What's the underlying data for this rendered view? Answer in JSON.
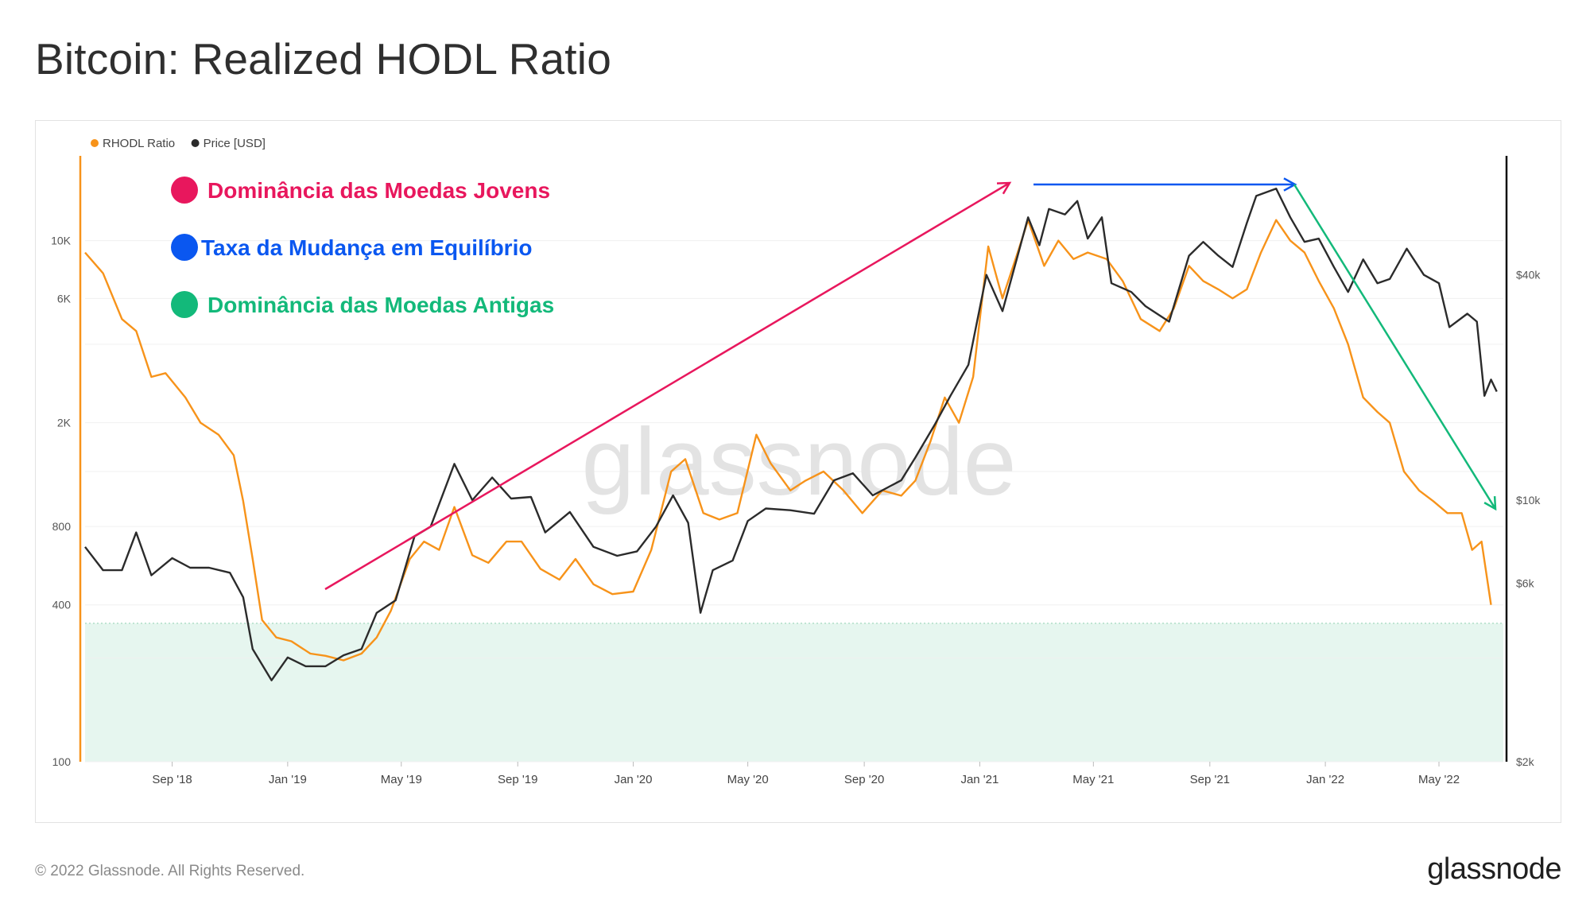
{
  "page": {
    "title": "Bitcoin: Realized HODL Ratio",
    "copyright": "© 2022 Glassnode. All Rights Reserved.",
    "logo_text": "glassnode",
    "watermark": "glassnode"
  },
  "colors": {
    "rhodl": "#f7931a",
    "price": "#2b2b2b",
    "young": "#e8175d",
    "equilibrium": "#0a57f0",
    "old": "#13b97a",
    "zone_fill": "#e6f6ef"
  },
  "annotations": [
    {
      "label": "Dominância das Moedas Jovens",
      "color": "#e8175d"
    },
    {
      "label": "Taxa da Mudança em Equilíbrio",
      "color": "#0a57f0"
    },
    {
      "label": "Dominância das Moedas Antigas",
      "color": "#13b97a"
    }
  ],
  "chart_data": {
    "type": "line",
    "legend": [
      "RHODL Ratio",
      "Price [USD]"
    ],
    "legend_position": "top-left",
    "x_ticks": [
      "Sep '18",
      "Jan '19",
      "May '19",
      "Sep '19",
      "Jan '20",
      "May '20",
      "Sep '20",
      "Jan '21",
      "May '21",
      "Sep '21",
      "Jan '22",
      "May '22"
    ],
    "y_left": {
      "scale": "log",
      "ticks": [
        "10K",
        "6K",
        "2K",
        "800",
        "400",
        "100"
      ],
      "range": [
        100,
        20000
      ]
    },
    "y_right": {
      "scale": "log",
      "ticks": [
        "$40k",
        "$10k",
        "$6k",
        "$2k"
      ],
      "range": [
        2000,
        80000
      ]
    },
    "grid": true,
    "shaded_zone": {
      "axis": "left",
      "from": 100,
      "to": 340
    },
    "series": [
      {
        "name": "RHODL Ratio",
        "axis": "left",
        "points": [
          [
            "2018-06-01",
            9000
          ],
          [
            "2018-06-20",
            7500
          ],
          [
            "2018-07-10",
            5000
          ],
          [
            "2018-07-25",
            4500
          ],
          [
            "2018-08-10",
            3000
          ],
          [
            "2018-08-25",
            3100
          ],
          [
            "2018-09-15",
            2500
          ],
          [
            "2018-10-01",
            2000
          ],
          [
            "2018-10-20",
            1800
          ],
          [
            "2018-11-05",
            1500
          ],
          [
            "2018-11-15",
            1000
          ],
          [
            "2018-11-25",
            600
          ],
          [
            "2018-12-05",
            350
          ],
          [
            "2018-12-20",
            300
          ],
          [
            "2019-01-05",
            290
          ],
          [
            "2019-01-25",
            260
          ],
          [
            "2019-02-10",
            255
          ],
          [
            "2019-03-01",
            245
          ],
          [
            "2019-03-20",
            260
          ],
          [
            "2019-04-05",
            300
          ],
          [
            "2019-04-20",
            380
          ],
          [
            "2019-05-10",
            600
          ],
          [
            "2019-05-25",
            700
          ],
          [
            "2019-06-10",
            650
          ],
          [
            "2019-06-26",
            950
          ],
          [
            "2019-07-15",
            620
          ],
          [
            "2019-08-01",
            580
          ],
          [
            "2019-08-20",
            700
          ],
          [
            "2019-09-05",
            700
          ],
          [
            "2019-09-25",
            550
          ],
          [
            "2019-10-15",
            500
          ],
          [
            "2019-11-01",
            600
          ],
          [
            "2019-11-20",
            480
          ],
          [
            "2019-12-10",
            440
          ],
          [
            "2020-01-01",
            450
          ],
          [
            "2020-01-20",
            650
          ],
          [
            "2020-02-10",
            1300
          ],
          [
            "2020-02-25",
            1450
          ],
          [
            "2020-03-15",
            900
          ],
          [
            "2020-04-01",
            850
          ],
          [
            "2020-04-20",
            900
          ],
          [
            "2020-05-10",
            1800
          ],
          [
            "2020-05-25",
            1400
          ],
          [
            "2020-06-15",
            1100
          ],
          [
            "2020-07-01",
            1200
          ],
          [
            "2020-07-20",
            1300
          ],
          [
            "2020-08-10",
            1100
          ],
          [
            "2020-08-30",
            900
          ],
          [
            "2020-09-20",
            1100
          ],
          [
            "2020-10-10",
            1050
          ],
          [
            "2020-10-25",
            1200
          ],
          [
            "2020-11-10",
            1700
          ],
          [
            "2020-11-25",
            2500
          ],
          [
            "2020-12-10",
            2000
          ],
          [
            "2020-12-25",
            3000
          ],
          [
            "2021-01-10",
            9500
          ],
          [
            "2021-01-25",
            6000
          ],
          [
            "2021-02-10",
            9000
          ],
          [
            "2021-02-21",
            12000
          ],
          [
            "2021-03-10",
            8000
          ],
          [
            "2021-03-25",
            10000
          ],
          [
            "2021-04-10",
            8500
          ],
          [
            "2021-04-25",
            9000
          ],
          [
            "2021-05-15",
            8500
          ],
          [
            "2021-06-01",
            7000
          ],
          [
            "2021-06-20",
            5000
          ],
          [
            "2021-07-10",
            4500
          ],
          [
            "2021-07-25",
            5500
          ],
          [
            "2021-08-10",
            8000
          ],
          [
            "2021-08-25",
            7000
          ],
          [
            "2021-09-10",
            6500
          ],
          [
            "2021-09-25",
            6000
          ],
          [
            "2021-10-10",
            6500
          ],
          [
            "2021-10-25",
            9000
          ],
          [
            "2021-11-10",
            12000
          ],
          [
            "2021-11-25",
            10000
          ],
          [
            "2021-12-10",
            9000
          ],
          [
            "2021-12-25",
            7000
          ],
          [
            "2022-01-10",
            5500
          ],
          [
            "2022-01-25",
            4000
          ],
          [
            "2022-02-10",
            2500
          ],
          [
            "2022-02-25",
            2200
          ],
          [
            "2022-03-10",
            2000
          ],
          [
            "2022-03-25",
            1300
          ],
          [
            "2022-04-10",
            1100
          ],
          [
            "2022-04-25",
            1000
          ],
          [
            "2022-05-10",
            900
          ],
          [
            "2022-05-25",
            900
          ],
          [
            "2022-06-05",
            650
          ],
          [
            "2022-06-15",
            700
          ],
          [
            "2022-06-25",
            400
          ]
        ]
      },
      {
        "name": "Price [USD]",
        "axis": "right",
        "points": [
          [
            "2018-06-01",
            7500
          ],
          [
            "2018-06-20",
            6500
          ],
          [
            "2018-07-10",
            6500
          ],
          [
            "2018-07-25",
            8200
          ],
          [
            "2018-08-10",
            6300
          ],
          [
            "2018-09-01",
            7000
          ],
          [
            "2018-09-20",
            6600
          ],
          [
            "2018-10-10",
            6600
          ],
          [
            "2018-11-01",
            6400
          ],
          [
            "2018-11-15",
            5500
          ],
          [
            "2018-11-25",
            4000
          ],
          [
            "2018-12-15",
            3300
          ],
          [
            "2019-01-01",
            3800
          ],
          [
            "2019-01-20",
            3600
          ],
          [
            "2019-02-10",
            3600
          ],
          [
            "2019-03-01",
            3850
          ],
          [
            "2019-03-20",
            4000
          ],
          [
            "2019-04-05",
            5000
          ],
          [
            "2019-04-25",
            5400
          ],
          [
            "2019-05-15",
            8000
          ],
          [
            "2019-06-01",
            8500
          ],
          [
            "2019-06-26",
            12500
          ],
          [
            "2019-07-15",
            10000
          ],
          [
            "2019-08-05",
            11500
          ],
          [
            "2019-08-25",
            10100
          ],
          [
            "2019-09-15",
            10200
          ],
          [
            "2019-09-30",
            8200
          ],
          [
            "2019-10-26",
            9300
          ],
          [
            "2019-11-20",
            7500
          ],
          [
            "2019-12-15",
            7100
          ],
          [
            "2020-01-05",
            7300
          ],
          [
            "2020-01-25",
            8500
          ],
          [
            "2020-02-12",
            10300
          ],
          [
            "2020-02-28",
            8700
          ],
          [
            "2020-03-12",
            5000
          ],
          [
            "2020-03-25",
            6500
          ],
          [
            "2020-04-15",
            6900
          ],
          [
            "2020-05-01",
            8800
          ],
          [
            "2020-05-20",
            9500
          ],
          [
            "2020-06-15",
            9400
          ],
          [
            "2020-07-10",
            9200
          ],
          [
            "2020-07-31",
            11300
          ],
          [
            "2020-08-20",
            11800
          ],
          [
            "2020-09-10",
            10300
          ],
          [
            "2020-10-10",
            11300
          ],
          [
            "2020-10-25",
            13000
          ],
          [
            "2020-11-15",
            16000
          ],
          [
            "2020-12-01",
            19000
          ],
          [
            "2020-12-20",
            23000
          ],
          [
            "2021-01-08",
            40000
          ],
          [
            "2021-01-25",
            32000
          ],
          [
            "2021-02-10",
            45000
          ],
          [
            "2021-02-21",
            57000
          ],
          [
            "2021-03-05",
            48000
          ],
          [
            "2021-03-15",
            60000
          ],
          [
            "2021-04-01",
            58000
          ],
          [
            "2021-04-14",
            63000
          ],
          [
            "2021-04-25",
            50000
          ],
          [
            "2021-05-10",
            57000
          ],
          [
            "2021-05-20",
            38000
          ],
          [
            "2021-06-10",
            36000
          ],
          [
            "2021-06-25",
            33000
          ],
          [
            "2021-07-20",
            30000
          ],
          [
            "2021-08-10",
            45000
          ],
          [
            "2021-08-25",
            49000
          ],
          [
            "2021-09-10",
            45000
          ],
          [
            "2021-09-25",
            42000
          ],
          [
            "2021-10-10",
            55000
          ],
          [
            "2021-10-20",
            65000
          ],
          [
            "2021-11-10",
            68000
          ],
          [
            "2021-11-25",
            57000
          ],
          [
            "2021-12-10",
            49000
          ],
          [
            "2021-12-25",
            50000
          ],
          [
            "2022-01-10",
            42000
          ],
          [
            "2022-01-25",
            36000
          ],
          [
            "2022-02-10",
            44000
          ],
          [
            "2022-02-25",
            38000
          ],
          [
            "2022-03-10",
            39000
          ],
          [
            "2022-03-28",
            47000
          ],
          [
            "2022-04-15",
            40000
          ],
          [
            "2022-05-01",
            38000
          ],
          [
            "2022-05-12",
            29000
          ],
          [
            "2022-05-31",
            31500
          ],
          [
            "2022-06-10",
            30000
          ],
          [
            "2022-06-18",
            19000
          ],
          [
            "2022-06-25",
            21000
          ],
          [
            "2022-07-01",
            19500
          ]
        ]
      }
    ]
  }
}
